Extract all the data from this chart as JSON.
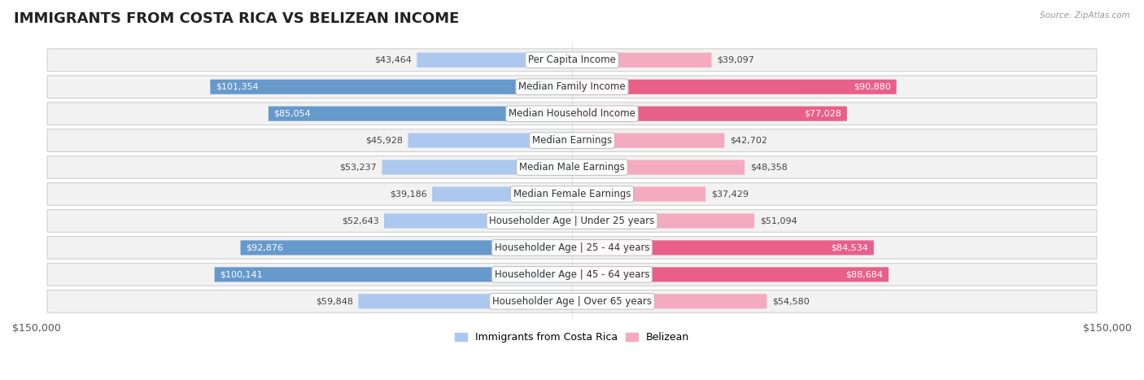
{
  "title": "IMMIGRANTS FROM COSTA RICA VS BELIZEAN INCOME",
  "source": "Source: ZipAtlas.com",
  "categories": [
    "Per Capita Income",
    "Median Family Income",
    "Median Household Income",
    "Median Earnings",
    "Median Male Earnings",
    "Median Female Earnings",
    "Householder Age | Under 25 years",
    "Householder Age | 25 - 44 years",
    "Householder Age | 45 - 64 years",
    "Householder Age | Over 65 years"
  ],
  "costa_rica_values": [
    43464,
    101354,
    85054,
    45928,
    53237,
    39186,
    52643,
    92876,
    100141,
    59848
  ],
  "belizean_values": [
    39097,
    90880,
    77028,
    42702,
    48358,
    37429,
    51094,
    84534,
    88684,
    54580
  ],
  "costa_rica_color_light": "#adc8ee",
  "costa_rica_color_dark": "#6699cc",
  "belizean_color_light": "#f4aac0",
  "belizean_color_dark": "#e8608a",
  "costa_rica_label": "Immigrants from Costa Rica",
  "belizean_label": "Belizean",
  "bar_height": 0.55,
  "xlim": 150000,
  "background_color": "#ffffff",
  "row_bg_even": "#f0f0f0",
  "row_bg_odd": "#fafafa",
  "title_fontsize": 13,
  "label_fontsize": 8.5,
  "value_fontsize": 8,
  "legend_fontsize": 9,
  "inside_label_threshold": 75000
}
